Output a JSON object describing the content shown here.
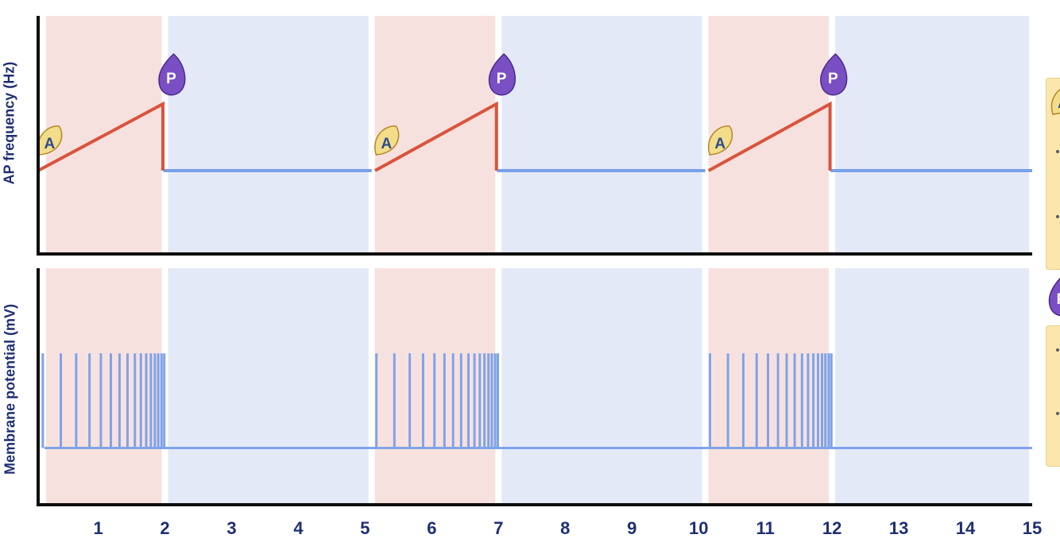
{
  "chart_data": {
    "type": "line",
    "x_ticks": [
      1,
      2,
      3,
      4,
      5,
      6,
      7,
      8,
      9,
      10,
      11,
      12,
      13,
      14,
      15
    ],
    "xlim": [
      0.1,
      15
    ],
    "phases": [
      {
        "type": "active",
        "start": 0.1,
        "end": 2
      },
      {
        "type": "rest",
        "start": 2,
        "end": 5.1
      },
      {
        "type": "active",
        "start": 5.1,
        "end": 7
      },
      {
        "type": "rest",
        "start": 7,
        "end": 10.1
      },
      {
        "type": "active",
        "start": 10.1,
        "end": 12
      },
      {
        "type": "rest",
        "start": 12,
        "end": 15
      }
    ],
    "panels": [
      {
        "name": "top",
        "ylabel": "AP frequency (Hz)",
        "ylim": [
          0,
          10
        ],
        "rest_level": 3.5,
        "ramps": [
          {
            "x_start": 0.1,
            "x_end": 1.97,
            "y_start": 3.5,
            "y_end": 6.3
          },
          {
            "x_start": 5.15,
            "x_end": 6.97,
            "y_start": 3.5,
            "y_end": 6.3
          },
          {
            "x_start": 10.15,
            "x_end": 11.97,
            "y_start": 3.5,
            "y_end": 6.3
          }
        ],
        "markers": [
          {
            "label": "A",
            "x": 0.2,
            "y": 4.7
          },
          {
            "label": "P",
            "x": 2.0,
            "y": 7.4
          },
          {
            "label": "A",
            "x": 5.25,
            "y": 4.7
          },
          {
            "label": "P",
            "x": 6.95,
            "y": 7.4
          },
          {
            "label": "A",
            "x": 10.25,
            "y": 4.7
          },
          {
            "label": "P",
            "x": 11.92,
            "y": 7.4
          }
        ]
      },
      {
        "name": "bottom",
        "ylabel": "Membrane potential (mV)",
        "ylim": [
          0,
          10
        ],
        "baseline": 2.4,
        "spike_peak": 6.4,
        "spike_trains": [
          {
            "times": [
              0.17,
              0.44,
              0.67,
              0.87,
              1.04,
              1.19,
              1.32,
              1.44,
              1.55,
              1.64,
              1.72,
              1.79,
              1.85,
              1.9,
              1.95,
              1.99
            ]
          },
          {
            "times": [
              5.17,
              5.44,
              5.67,
              5.87,
              6.04,
              6.19,
              6.32,
              6.44,
              6.55,
              6.64,
              6.72,
              6.79,
              6.85,
              6.9,
              6.95,
              6.99
            ]
          },
          {
            "times": [
              10.17,
              10.44,
              10.67,
              10.87,
              11.04,
              11.19,
              11.32,
              11.44,
              11.55,
              11.64,
              11.72,
              11.79,
              11.85,
              11.9,
              11.95,
              11.99
            ]
          }
        ]
      }
    ]
  },
  "colors": {
    "active_bg": "#f7e1de",
    "rest_bg": "#e3e9f7",
    "ramp_line": "#d9543d",
    "rest_line": "#78a0e8",
    "spike_line": "#7ea3ea",
    "axis": "#0d0d0d",
    "tick_text": "#1f2f73",
    "badge_a_fill": "#f3dc8a",
    "badge_a_stroke": "#b08a2a",
    "badge_a_text": "#2c4c8f",
    "badge_p_fill": "#7a4fc4",
    "badge_p_stroke": "#4a2a8a",
    "badge_p_text": "#ffffff"
  },
  "legend_partial": {
    "badges": [
      {
        "label": "A"
      },
      {
        "label": "P"
      }
    ]
  }
}
